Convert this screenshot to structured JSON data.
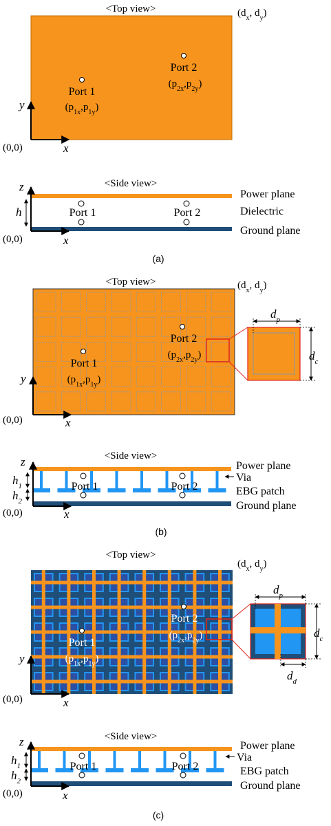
{
  "colors": {
    "orange": "#f7941d",
    "orange_border": "#d97a00",
    "patch_outline": "#8a96a8",
    "dark_blue": "#1f4e79",
    "navy": "#2b4fa3",
    "light_blue": "#2196f3",
    "red": "#e0241b",
    "black": "#000000"
  },
  "panel_a": {
    "top_view_title": "<Top view>",
    "side_view_title": "<Side view>",
    "corner_tr": "(d",
    "corner_tr_sub1": "x",
    "corner_tr_mid": ", d",
    "corner_tr_sub2": "y",
    "corner_tr_end": ")",
    "origin": "(0,0)",
    "axis_x": "x",
    "axis_y": "y",
    "axis_z": "z",
    "port1_label": "Port 1",
    "port1_coord": "(p",
    "port1_sub1": "1x",
    "port1_mid": ",p",
    "port1_sub2": "1y",
    "port1_end": ")",
    "port2_label": "Port 2",
    "port2_coord": "(p",
    "port2_sub1": "2x",
    "port2_mid": ",p",
    "port2_sub2": "2y",
    "port2_end": ")",
    "h_label": "h",
    "power_plane": "Power plane",
    "dielectric": "Dielectric",
    "ground_plane": "Ground plane",
    "caption": "(a)"
  },
  "panel_b": {
    "top_view_title": "<Top view>",
    "side_view_title": "<Side view>",
    "origin": "(0,0)",
    "axis_x": "x",
    "axis_y": "y",
    "axis_z": "z",
    "port1_label": "Port 1",
    "port2_label": "Port 2",
    "zoom_dp": "d",
    "zoom_dp_sub": "p",
    "zoom_dc": "d",
    "zoom_dc_sub": "c",
    "h1": "h",
    "h1_sub": "1",
    "h2": "h",
    "h2_sub": "2",
    "power_plane": "Power plane",
    "via": "Via",
    "ebg_patch": "EBG patch",
    "ground_plane": "Ground plane",
    "caption": "(b)"
  },
  "panel_c": {
    "top_view_title": "<Top view>",
    "side_view_title": "<Side view>",
    "origin": "(0,0)",
    "axis_x": "x",
    "axis_y": "y",
    "axis_z": "z",
    "port1_label": "Port 1",
    "port2_label": "Port 2",
    "zoom_dp": "d",
    "zoom_dp_sub": "p",
    "zoom_dc": "d",
    "zoom_dc_sub": "c",
    "zoom_dd": "d",
    "zoom_dd_sub": "d",
    "h1": "h",
    "h1_sub": "1",
    "h2": "h",
    "h2_sub": "2",
    "power_plane": "Power plane",
    "via": "Via",
    "ebg_patch": "EBG patch",
    "ground_plane": "Ground plane",
    "caption": "(c)"
  }
}
